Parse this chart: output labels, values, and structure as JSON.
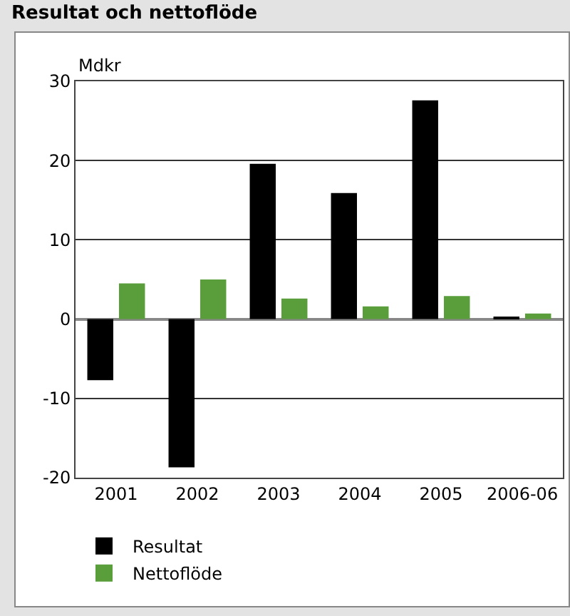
{
  "chart_data": {
    "type": "bar",
    "title": "Resultat och nettoflöde",
    "ylabel": "Mdkr",
    "categories": [
      "2001",
      "2002",
      "2003",
      "2004",
      "2005",
      "2006-06"
    ],
    "series": [
      {
        "name": "Resultat",
        "color": "#000000",
        "values": [
          -7.7,
          -18.7,
          19.6,
          15.9,
          27.6,
          0.3
        ]
      },
      {
        "name": "Nettoflöde",
        "color": "#5a9e3c",
        "values": [
          4.5,
          5.0,
          2.6,
          1.6,
          2.9,
          0.7
        ]
      }
    ],
    "ylim": [
      -20,
      30
    ],
    "yticks": [
      -20,
      -10,
      0,
      10,
      20,
      30
    ],
    "grid": "y",
    "legend": "bottom"
  }
}
